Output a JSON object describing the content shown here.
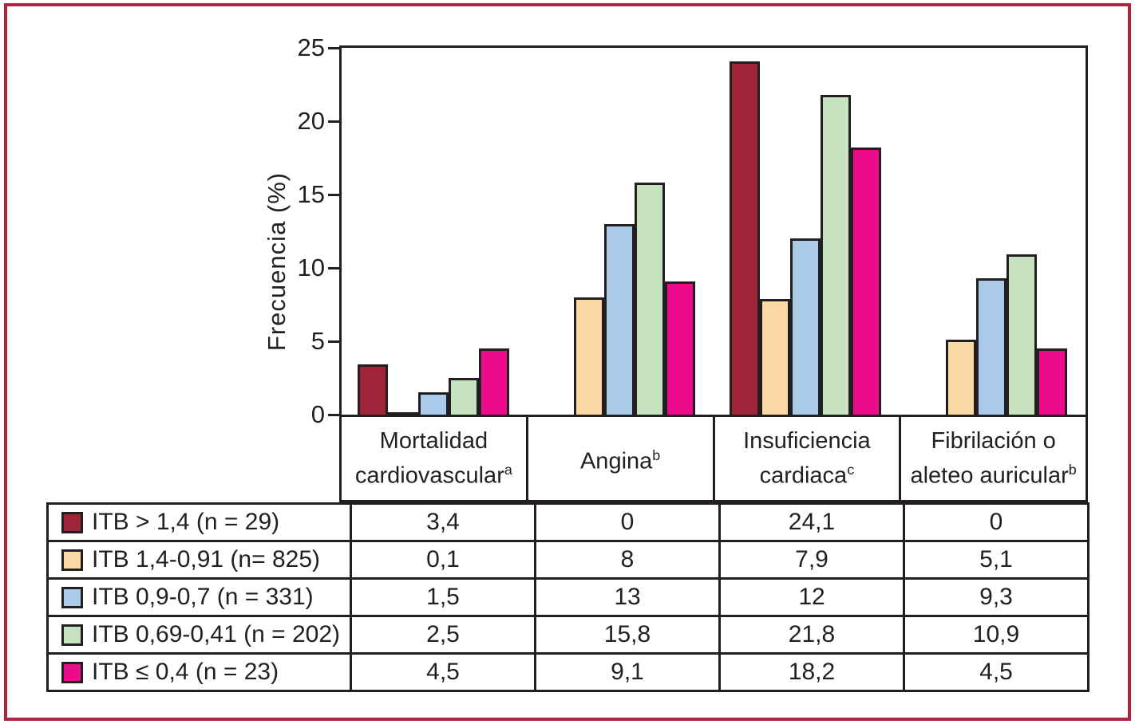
{
  "figure": {
    "frame_color": "#AF2543",
    "line_color": "#231F20",
    "background": "#ffffff"
  },
  "chart_data": {
    "type": "bar",
    "title": "",
    "ylabel": "Frecuencia (%)",
    "ylim": [
      0,
      25
    ],
    "yticks": [
      "0",
      "5",
      "10",
      "15",
      "20",
      "25"
    ],
    "grid": false,
    "legend_position": "table-first-column",
    "categories": [
      {
        "lines": [
          "Mortalidad",
          "cardiovascular"
        ],
        "sup": "a"
      },
      {
        "lines": [
          "Angina"
        ],
        "sup": "b"
      },
      {
        "lines": [
          "Insuficiencia",
          "cardiaca"
        ],
        "sup": "c"
      },
      {
        "lines": [
          "Fibrilación o",
          "aleteo auricular"
        ],
        "sup": "b"
      }
    ],
    "series": [
      {
        "name": "ITB > 1,4 (n = 29)",
        "color": "#9F2438",
        "values": [
          3.4,
          0,
          24.1,
          0
        ],
        "display_values": [
          "3,4",
          "0",
          "24,1",
          "0"
        ]
      },
      {
        "name": "ITB 1,4-0,91 (n= 825)",
        "color": "#FBD9A4",
        "values": [
          0.1,
          8,
          7.9,
          5.1
        ],
        "display_values": [
          "0,1",
          "8",
          "7,9",
          "5,1"
        ]
      },
      {
        "name": "ITB 0,9-0,7 (n = 331)",
        "color": "#A9CAE9",
        "values": [
          1.5,
          13,
          12,
          9.3
        ],
        "display_values": [
          "1,5",
          "13",
          "12",
          "9,3"
        ]
      },
      {
        "name": "ITB 0,69-0,41 (n = 202)",
        "color": "#C7E2C1",
        "values": [
          2.5,
          15.8,
          21.8,
          10.9
        ],
        "display_values": [
          "2,5",
          "15,8",
          "21,8",
          "10,9"
        ]
      },
      {
        "name": "ITB ≤ 0,4 (n = 23)",
        "color": "#EC0B8D",
        "values": [
          4.5,
          9.1,
          18.2,
          4.5
        ],
        "display_values": [
          "4,5",
          "9,1",
          "18,2",
          "4,5"
        ]
      }
    ]
  }
}
